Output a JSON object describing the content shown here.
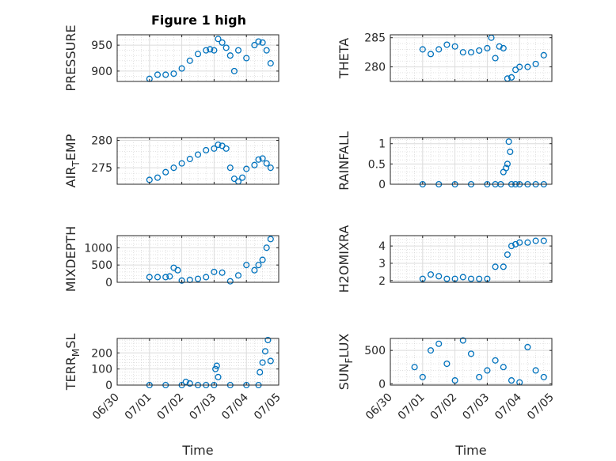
{
  "figure": {
    "title": "Figure 1 high",
    "marker_color": "#0072bd"
  },
  "chart_data": [
    {
      "type": "scatter",
      "ylabel_parts": [
        "PRESSURE"
      ],
      "ylim": [
        880,
        970
      ],
      "yticks": [
        900,
        950
      ],
      "xlabel": "",
      "x": [
        "2021-07-01 00:00",
        "2021-07-01 06:00",
        "2021-07-01 12:00",
        "2021-07-01 18:00",
        "2021-07-02 00:00",
        "2021-07-02 06:00",
        "2021-07-02 12:00",
        "2021-07-02 18:00",
        "2021-07-02 21:00",
        "2021-07-03 00:00",
        "2021-07-03 03:00",
        "2021-07-03 06:00",
        "2021-07-03 09:00",
        "2021-07-03 12:00",
        "2021-07-03 15:00",
        "2021-07-03 18:00",
        "2021-07-04 00:00",
        "2021-07-04 06:00",
        "2021-07-04 09:00",
        "2021-07-04 12:00",
        "2021-07-04 15:00",
        "2021-07-04 18:00"
      ],
      "y": [
        885,
        893,
        893,
        895,
        905,
        920,
        933,
        940,
        942,
        940,
        962,
        955,
        945,
        930,
        900,
        940,
        925,
        950,
        957,
        955,
        940,
        915
      ]
    },
    {
      "type": "scatter",
      "ylabel_parts": [
        "THETA"
      ],
      "ylim": [
        277.5,
        285.5
      ],
      "yticks": [
        280,
        285
      ],
      "xlabel": "",
      "x": [
        "2021-07-01 00:00",
        "2021-07-01 06:00",
        "2021-07-01 12:00",
        "2021-07-01 18:00",
        "2021-07-02 00:00",
        "2021-07-02 06:00",
        "2021-07-02 12:00",
        "2021-07-02 18:00",
        "2021-07-03 00:00",
        "2021-07-03 03:00",
        "2021-07-03 06:00",
        "2021-07-03 09:00",
        "2021-07-03 12:00",
        "2021-07-03 15:00",
        "2021-07-03 18:00",
        "2021-07-03 21:00",
        "2021-07-04 00:00",
        "2021-07-04 06:00",
        "2021-07-04 12:00",
        "2021-07-04 18:00"
      ],
      "y": [
        283,
        282.2,
        283,
        283.8,
        283.5,
        282.5,
        282.5,
        282.8,
        283.2,
        285,
        281.5,
        283.5,
        283.2,
        278,
        278.2,
        279.5,
        280,
        280,
        280.5,
        282
      ]
    },
    {
      "type": "scatter",
      "ylabel_parts": [
        "AIR",
        "T",
        "EMP"
      ],
      "ylim": [
        272,
        280.5
      ],
      "yticks": [
        275,
        280
      ],
      "xlabel": "",
      "x": [
        "2021-07-01 00:00",
        "2021-07-01 06:00",
        "2021-07-01 12:00",
        "2021-07-01 18:00",
        "2021-07-02 00:00",
        "2021-07-02 06:00",
        "2021-07-02 12:00",
        "2021-07-02 18:00",
        "2021-07-03 00:00",
        "2021-07-03 03:00",
        "2021-07-03 06:00",
        "2021-07-03 09:00",
        "2021-07-03 12:00",
        "2021-07-03 15:00",
        "2021-07-03 18:00",
        "2021-07-03 21:00",
        "2021-07-04 00:00",
        "2021-07-04 06:00",
        "2021-07-04 09:00",
        "2021-07-04 12:00",
        "2021-07-04 15:00",
        "2021-07-04 18:00"
      ],
      "y": [
        272.8,
        273.2,
        274.2,
        275,
        275.8,
        276.6,
        277.4,
        278.2,
        278.5,
        279.2,
        279,
        278.5,
        275,
        273,
        272.5,
        273.2,
        274.8,
        275.5,
        276.5,
        276.7,
        275.8,
        275
      ]
    },
    {
      "type": "scatter",
      "ylabel_parts": [
        "RAINFALL"
      ],
      "ylim": [
        0,
        1.15
      ],
      "yticks": [
        0,
        0.5,
        1
      ],
      "ytick_labels": [
        "0",
        "0.5",
        "1"
      ],
      "xlabel": "",
      "x": [
        "2021-07-01 00:00",
        "2021-07-01 12:00",
        "2021-07-02 00:00",
        "2021-07-02 12:00",
        "2021-07-03 00:00",
        "2021-07-03 06:00",
        "2021-07-03 10:00",
        "2021-07-03 12:00",
        "2021-07-03 14:00",
        "2021-07-03 15:00",
        "2021-07-03 16:00",
        "2021-07-03 17:00",
        "2021-07-03 18:00",
        "2021-07-03 21:00",
        "2021-07-04 00:00",
        "2021-07-04 06:00",
        "2021-07-04 12:00",
        "2021-07-04 18:00"
      ],
      "y": [
        0,
        0,
        0,
        0,
        0,
        0,
        0,
        0.3,
        0.4,
        0.5,
        1.05,
        0.8,
        0,
        0,
        0,
        0,
        0,
        0
      ]
    },
    {
      "type": "scatter",
      "ylabel_parts": [
        "MIXDEPTH"
      ],
      "ylim": [
        0,
        1350
      ],
      "yticks": [
        0,
        500,
        1000
      ],
      "xlabel": "",
      "x": [
        "2021-07-01 00:00",
        "2021-07-01 06:00",
        "2021-07-01 12:00",
        "2021-07-01 15:00",
        "2021-07-01 18:00",
        "2021-07-01 21:00",
        "2021-07-02 00:00",
        "2021-07-02 06:00",
        "2021-07-02 12:00",
        "2021-07-02 18:00",
        "2021-07-03 00:00",
        "2021-07-03 06:00",
        "2021-07-03 12:00",
        "2021-07-03 18:00",
        "2021-07-04 00:00",
        "2021-07-04 06:00",
        "2021-07-04 09:00",
        "2021-07-04 12:00",
        "2021-07-04 15:00",
        "2021-07-04 18:00"
      ],
      "y": [
        150,
        150,
        150,
        170,
        420,
        350,
        50,
        70,
        100,
        150,
        300,
        280,
        30,
        200,
        500,
        350,
        500,
        650,
        1000,
        1250
      ]
    },
    {
      "type": "scatter",
      "ylabel_parts": [
        "H2OMIXRA"
      ],
      "ylim": [
        1.9,
        4.6
      ],
      "yticks": [
        2,
        3,
        4
      ],
      "xlabel": "",
      "x": [
        "2021-07-01 00:00",
        "2021-07-01 06:00",
        "2021-07-01 12:00",
        "2021-07-01 18:00",
        "2021-07-02 00:00",
        "2021-07-02 06:00",
        "2021-07-02 12:00",
        "2021-07-02 18:00",
        "2021-07-03 00:00",
        "2021-07-03 06:00",
        "2021-07-03 12:00",
        "2021-07-03 15:00",
        "2021-07-03 18:00",
        "2021-07-03 21:00",
        "2021-07-04 00:00",
        "2021-07-04 06:00",
        "2021-07-04 12:00",
        "2021-07-04 18:00"
      ],
      "y": [
        2.1,
        2.35,
        2.25,
        2.1,
        2.1,
        2.2,
        2.1,
        2.1,
        2.1,
        2.8,
        2.8,
        3.5,
        4.0,
        4.1,
        4.2,
        4.2,
        4.3,
        4.3
      ]
    },
    {
      "type": "scatter",
      "ylabel_parts": [
        "TERR",
        "M",
        "SL"
      ],
      "ylim": [
        0,
        290
      ],
      "yticks": [
        0,
        100,
        200
      ],
      "xlabel": "Time",
      "x": [
        "2021-07-01 00:00",
        "2021-07-01 12:00",
        "2021-07-02 00:00",
        "2021-07-02 03:00",
        "2021-07-02 06:00",
        "2021-07-02 12:00",
        "2021-07-02 18:00",
        "2021-07-03 00:00",
        "2021-07-03 01:00",
        "2021-07-03 02:00",
        "2021-07-03 03:00",
        "2021-07-03 12:00",
        "2021-07-04 00:00",
        "2021-07-04 09:00",
        "2021-07-04 10:00",
        "2021-07-04 12:00",
        "2021-07-04 14:00",
        "2021-07-04 16:00",
        "2021-07-04 18:00"
      ],
      "y": [
        0,
        0,
        0,
        20,
        10,
        0,
        0,
        0,
        100,
        120,
        50,
        0,
        0,
        0,
        80,
        140,
        210,
        280,
        150
      ]
    },
    {
      "type": "scatter",
      "ylabel_parts": [
        "SUN",
        "F",
        "LUX"
      ],
      "ylim": [
        -20,
        680
      ],
      "yticks": [
        0,
        500
      ],
      "xlabel": "Time",
      "x": [
        "2021-06-30 18:00",
        "2021-07-01 00:00",
        "2021-07-01 06:00",
        "2021-07-01 12:00",
        "2021-07-01 18:00",
        "2021-07-02 00:00",
        "2021-07-02 06:00",
        "2021-07-02 12:00",
        "2021-07-02 18:00",
        "2021-07-03 00:00",
        "2021-07-03 06:00",
        "2021-07-03 12:00",
        "2021-07-03 18:00",
        "2021-07-04 00:00",
        "2021-07-04 06:00",
        "2021-07-04 12:00",
        "2021-07-04 18:00"
      ],
      "y": [
        250,
        100,
        500,
        600,
        300,
        50,
        650,
        450,
        100,
        200,
        350,
        250,
        50,
        20,
        550,
        200,
        100
      ]
    }
  ],
  "x_axis": {
    "ticks": [
      "2021-06-30 00:00",
      "2021-07-01 00:00",
      "2021-07-02 00:00",
      "2021-07-03 00:00",
      "2021-07-04 00:00",
      "2021-07-05 00:00"
    ],
    "tick_labels": [
      "06/30",
      "07/01",
      "07/02",
      "07/03",
      "07/04",
      "07/05"
    ]
  }
}
